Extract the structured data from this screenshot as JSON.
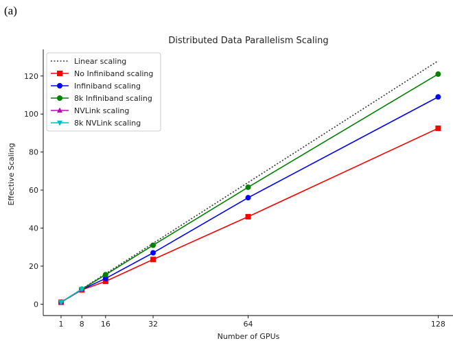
{
  "panel_label": "(a)",
  "chart_data": {
    "type": "line",
    "title": "Distributed Data Parallelism Scaling",
    "xlabel": "Number of GPUs",
    "ylabel": "Effective Scaling",
    "xlim": [
      -5,
      133
    ],
    "ylim": [
      -6,
      134
    ],
    "xticks": [
      1,
      8,
      16,
      32,
      64,
      128
    ],
    "yticks": [
      0,
      20,
      40,
      60,
      80,
      100,
      120
    ],
    "grid": false,
    "legend_position": "top-left",
    "series": [
      {
        "name": "Linear scaling",
        "color": "#333333",
        "style": "dotted",
        "marker": "none",
        "x": [
          1,
          128
        ],
        "y": [
          1,
          128
        ]
      },
      {
        "name": "No Infiniband scaling",
        "color": "#ff0000",
        "style": "solid",
        "marker": "square",
        "x": [
          1,
          8,
          16,
          32,
          64,
          128
        ],
        "y": [
          1,
          7.5,
          12,
          23.5,
          46,
          92.5
        ]
      },
      {
        "name": "Infiniband scaling",
        "color": "#0000ff",
        "style": "solid",
        "marker": "circle",
        "x": [
          1,
          8,
          16,
          32,
          64,
          128
        ],
        "y": [
          1,
          7.7,
          13.5,
          27,
          56,
          109
        ]
      },
      {
        "name": "8k Infiniband scaling",
        "color": "#008000",
        "style": "solid",
        "marker": "circle",
        "x": [
          1,
          8,
          16,
          32,
          64,
          128
        ],
        "y": [
          1,
          7.9,
          15.5,
          31,
          61.5,
          121
        ]
      },
      {
        "name": "NVLink scaling",
        "color": "#bf00bf",
        "style": "solid",
        "marker": "triangle-up",
        "x": [
          1,
          8
        ],
        "y": [
          1,
          7.6
        ]
      },
      {
        "name": "8k NVLink scaling",
        "color": "#00bfbf",
        "style": "solid",
        "marker": "triangle-down",
        "x": [
          1,
          8
        ],
        "y": [
          1,
          7.9
        ]
      }
    ]
  }
}
